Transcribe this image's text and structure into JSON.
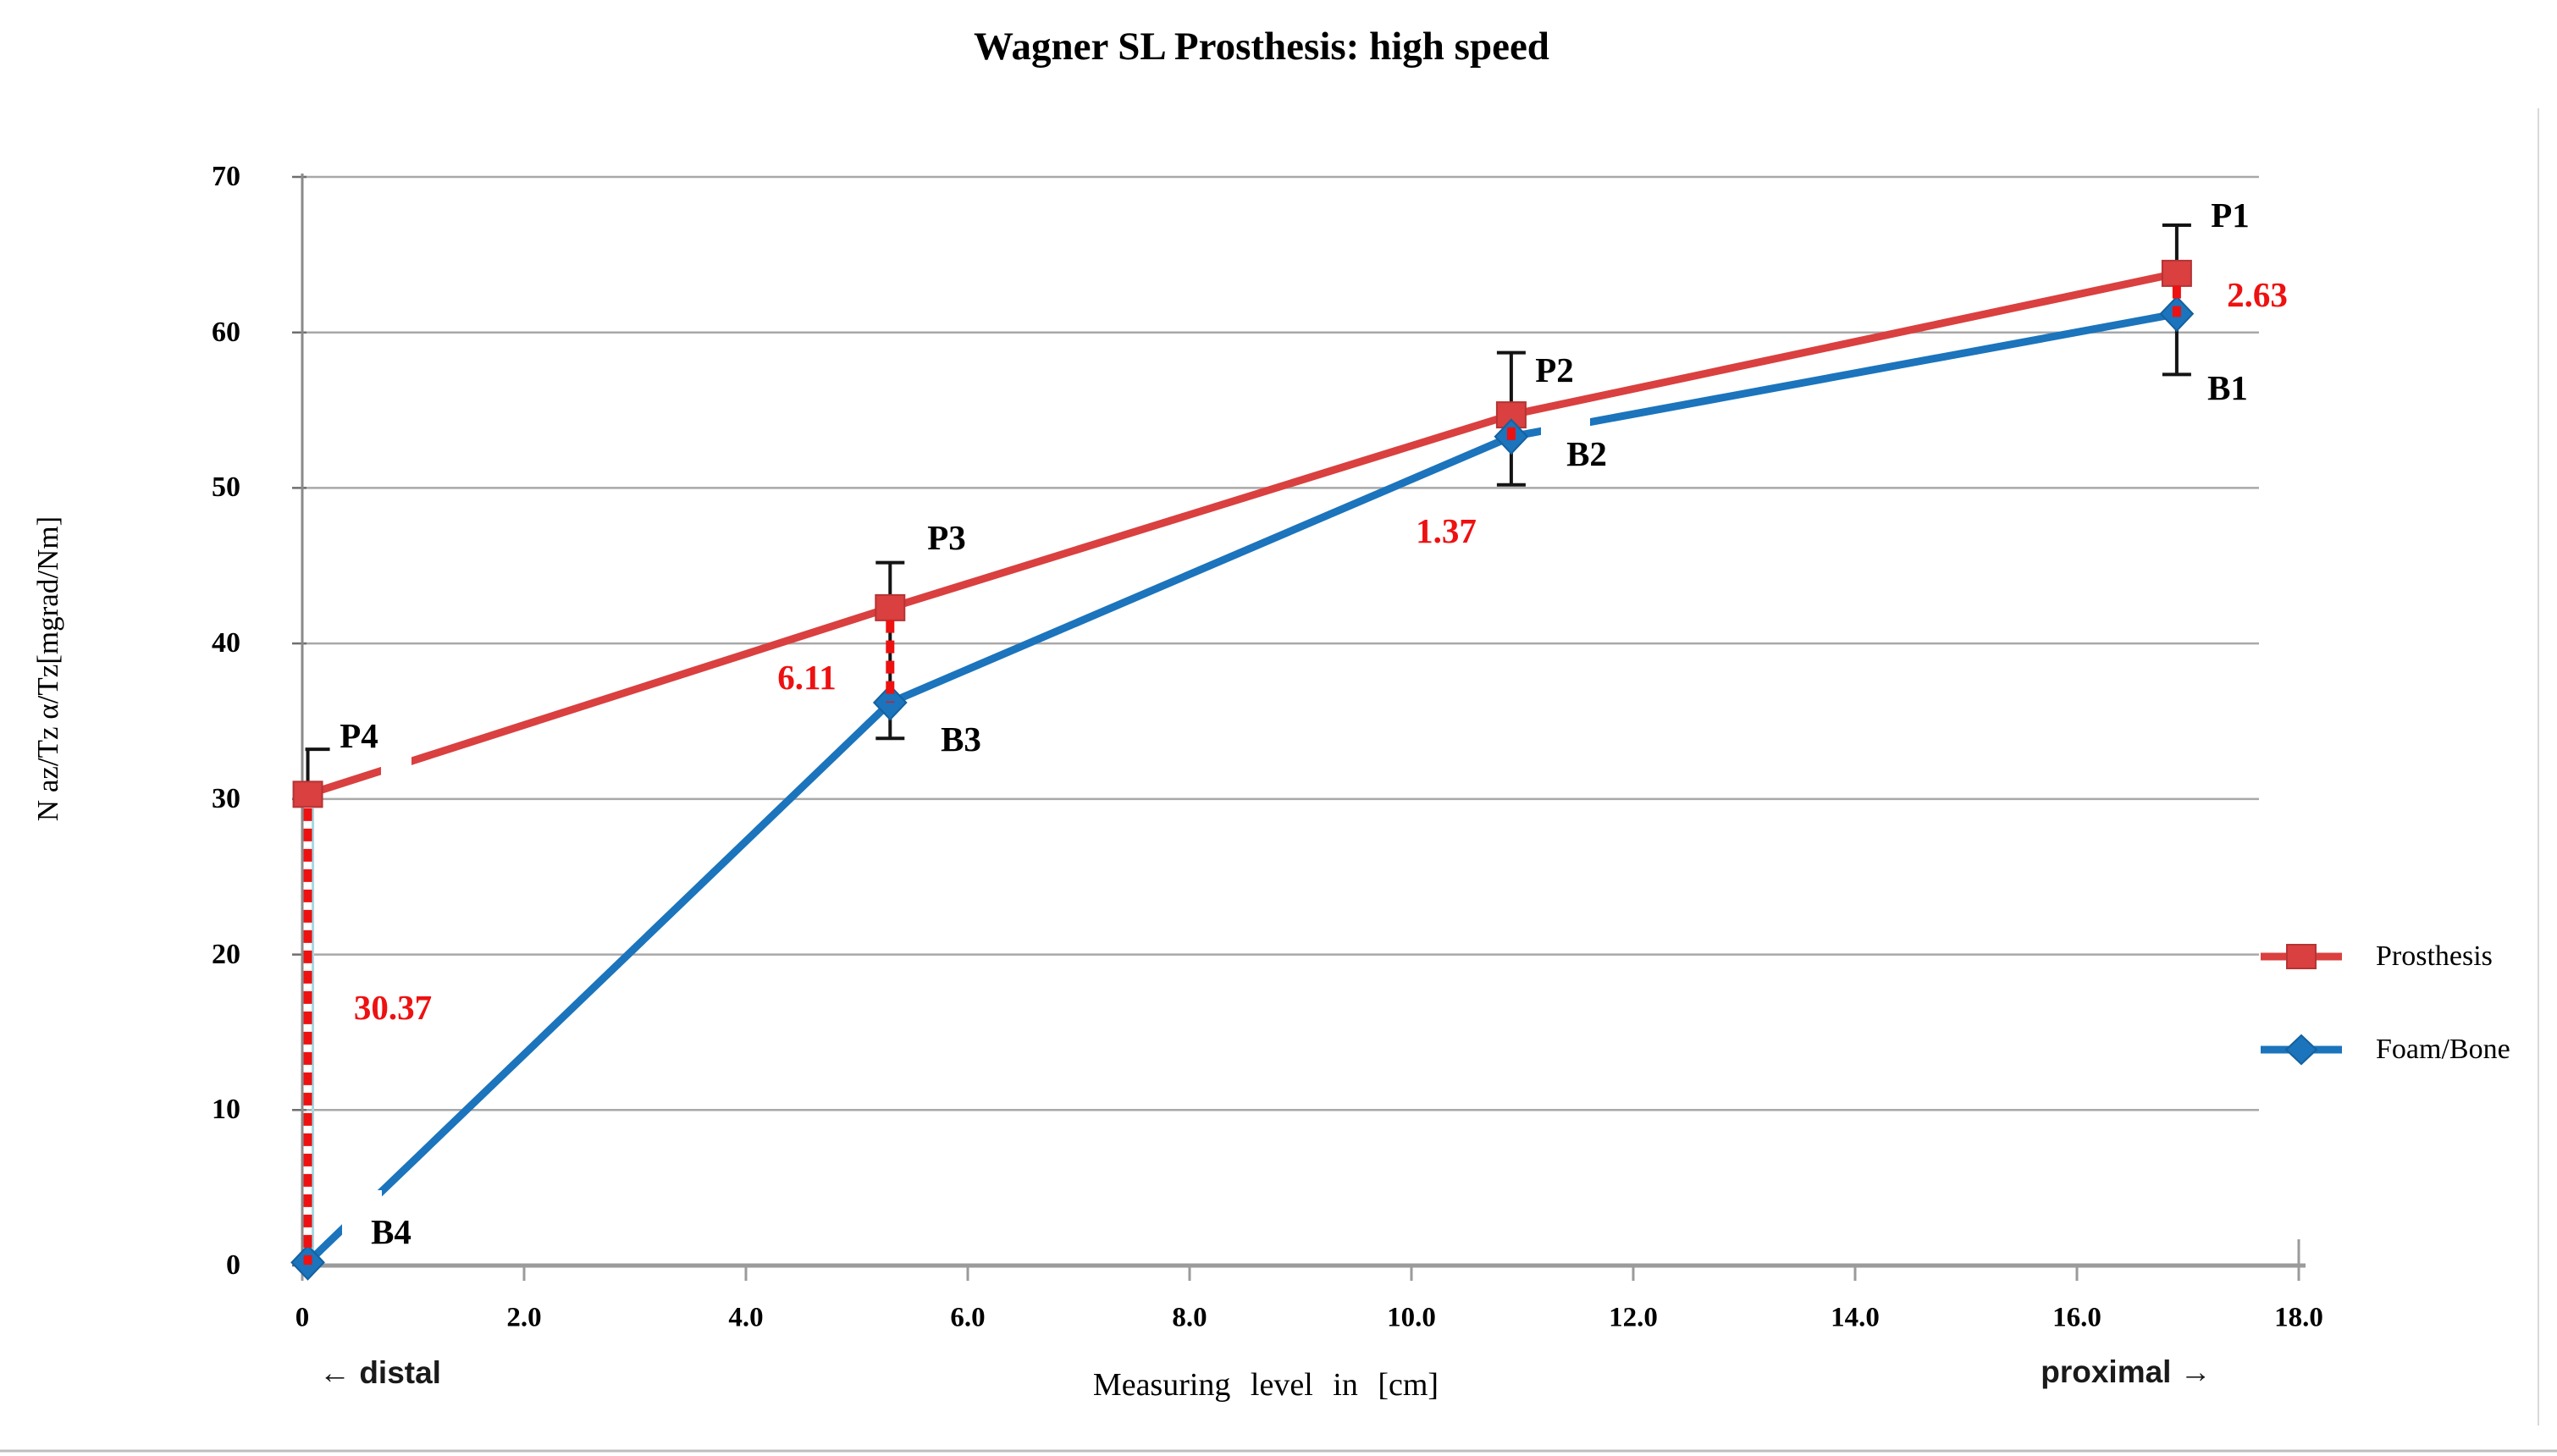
{
  "title": "Wagner SL Prosthesis: high speed",
  "axes": {
    "x": {
      "title": "Measuring level in [cm]",
      "direction_left": "← distal",
      "direction_right": "proximal →",
      "ticks": [
        {
          "v": 0,
          "label": "0"
        },
        {
          "v": 2,
          "label": "2.0"
        },
        {
          "v": 4,
          "label": "4.0"
        },
        {
          "v": 6,
          "label": "6.0"
        },
        {
          "v": 8,
          "label": "8.0"
        },
        {
          "v": 10,
          "label": "10.0"
        },
        {
          "v": 12,
          "label": "12.0"
        },
        {
          "v": 14,
          "label": "14.0"
        },
        {
          "v": 16,
          "label": "16.0"
        },
        {
          "v": 18,
          "label": "18.0"
        }
      ]
    },
    "y": {
      "title": "N az/Tz α/Tz[mgrad/Nm]",
      "ticks": [
        0,
        10,
        20,
        30,
        40,
        50,
        60,
        70
      ]
    }
  },
  "legend": {
    "items": [
      {
        "label": "Prosthesis",
        "color": "#d9403f",
        "marker": "square"
      },
      {
        "label": "Foam/Bone",
        "color": "#1b74bc",
        "marker": "diamond"
      }
    ]
  },
  "chart_data": {
    "type": "line",
    "title": "Wagner SL Prosthesis: high speed",
    "xlabel": "Measuring level in [cm]",
    "ylabel": "N az/Tz α/Tz[mgrad/Nm]",
    "xlim": [
      0,
      18
    ],
    "ylim": [
      0,
      70
    ],
    "gridlines": true,
    "legend_position": "right",
    "x": [
      0.05,
      5.3,
      10.9,
      16.9
    ],
    "series": [
      {
        "name": "Prosthesis",
        "color": "#d9403f",
        "edge_color": "#b53434",
        "marker": "square",
        "values": [
          30.3,
          42.3,
          54.7,
          63.8
        ],
        "point_labels": [
          "P4",
          "P3",
          "P2",
          "P1"
        ]
      },
      {
        "name": "Foam/Bone",
        "color": "#1b74bc",
        "edge_color": "#14619f",
        "marker": "diamond",
        "values": [
          0.2,
          36.2,
          53.3,
          61.2
        ],
        "point_labels": [
          "B4",
          "B3",
          "B2",
          "B1"
        ]
      }
    ],
    "error_bars": [
      {
        "x": 0.05,
        "low": 30.3,
        "high": 33.2
      },
      {
        "x": 5.3,
        "low": 33.9,
        "high": 45.2
      },
      {
        "x": 10.9,
        "low": 50.2,
        "high": 58.7
      },
      {
        "x": 16.9,
        "low": 57.3,
        "high": 66.9
      }
    ],
    "differences": [
      {
        "label": "30.37",
        "x": 0.05,
        "from": 29.4,
        "to": 0.05
      },
      {
        "label": "6.11",
        "x": 5.3,
        "from": 41.5,
        "to": 36.2
      },
      {
        "label": "1.37",
        "x": 10.9,
        "from": 53.9,
        "to": 52.6
      },
      {
        "label": "2.63",
        "x": 16.9,
        "from": 63.0,
        "to": 61.0
      }
    ],
    "diff_color": "#ee1111",
    "helper_line_color": "#a5d8e4",
    "gridline_color": "#a8a8a8",
    "axis_color": "#9b9b9b",
    "error_bar_color": "#141414"
  }
}
